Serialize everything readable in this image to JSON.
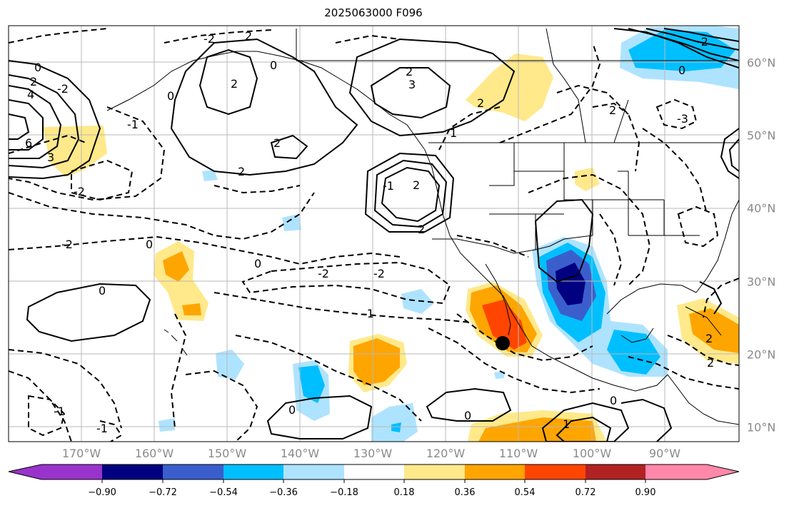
{
  "title": "2025063000 F096",
  "map": {
    "longitude_labels": [
      "170°W",
      "160°W",
      "150°W",
      "140°W",
      "130°W",
      "120°W",
      "110°W",
      "100°W",
      "90°W"
    ],
    "latitude_labels": [
      "60°N",
      "50°N",
      "40°N",
      "30°N",
      "20°N",
      "10°N"
    ],
    "contour_labels": [
      "0",
      "2",
      "-2",
      "4",
      "6",
      "3",
      "-2",
      "2",
      "0",
      "2",
      "2",
      "-2",
      "2",
      "3",
      "-1",
      "0",
      "2",
      "2",
      "-2",
      "-2",
      "0",
      "-2",
      "0",
      "0",
      "-1",
      "1",
      "2",
      "2",
      "-2",
      "0",
      "-1",
      "-3",
      "2",
      "0",
      "0",
      "0",
      "1",
      "2",
      "-1",
      "-1",
      "2"
    ],
    "marker": "storm-center-dot"
  },
  "colorbar": {
    "colors": [
      "#9933cc",
      "#000080",
      "#3a5fcd",
      "#00bfff",
      "#aee3ff",
      "#ffffff",
      "#ffe98a",
      "#ffa500",
      "#ff4500",
      "#b22222",
      "#ff88aa"
    ],
    "tick_labels": [
      "−0.90",
      "−0.72",
      "−0.54",
      "−0.36",
      "−0.18",
      "0.18",
      "0.36",
      "0.54",
      "0.72",
      "0.90"
    ]
  }
}
